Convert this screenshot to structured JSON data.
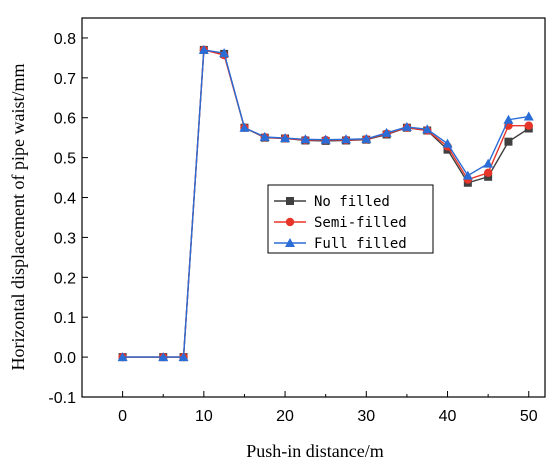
{
  "chart_data": {
    "type": "line",
    "title": "",
    "xlabel": "Push-in distance/m",
    "ylabel": "Horizontal displacement of pipe waist/mm",
    "xlim": [
      -5,
      52
    ],
    "ylim": [
      -0.1,
      0.85
    ],
    "xticks": [
      0,
      10,
      20,
      30,
      40,
      50
    ],
    "yticks": [
      -0.1,
      0.0,
      0.1,
      0.2,
      0.3,
      0.4,
      0.5,
      0.6,
      0.7,
      0.8
    ],
    "xtick_labels": [
      "0",
      "10",
      "20",
      "30",
      "40",
      "50"
    ],
    "ytick_labels": [
      "-0.1",
      "0.0",
      "0.1",
      "0.2",
      "0.3",
      "0.4",
      "0.5",
      "0.6",
      "0.7",
      "0.8"
    ],
    "grid": false,
    "legend_position": "center-right",
    "x": [
      0,
      5,
      7.5,
      10,
      12.5,
      15,
      17.5,
      20,
      22.5,
      25,
      27.5,
      30,
      32.5,
      35,
      37.5,
      40,
      42.5,
      45,
      47.5,
      50
    ],
    "series": [
      {
        "name": "No filled",
        "color": "#404040",
        "marker": "square",
        "values": [
          0.0,
          0.0,
          0.0,
          0.77,
          0.76,
          0.575,
          0.55,
          0.548,
          0.543,
          0.542,
          0.543,
          0.545,
          0.558,
          0.575,
          0.568,
          0.52,
          0.437,
          0.452,
          0.54,
          0.573
        ]
      },
      {
        "name": "Semi-filled",
        "color": "#e8352a",
        "marker": "circle",
        "values": [
          0.0,
          0.0,
          0.0,
          0.77,
          0.757,
          0.575,
          0.551,
          0.548,
          0.544,
          0.544,
          0.544,
          0.546,
          0.56,
          0.575,
          0.568,
          0.528,
          0.445,
          0.462,
          0.58,
          0.58
        ]
      },
      {
        "name": "Full filled",
        "color": "#2a6dd6",
        "marker": "triangle",
        "values": [
          0.0,
          0.0,
          0.0,
          0.77,
          0.762,
          0.575,
          0.552,
          0.549,
          0.546,
          0.545,
          0.546,
          0.547,
          0.562,
          0.577,
          0.571,
          0.535,
          0.455,
          0.485,
          0.595,
          0.603
        ]
      }
    ]
  }
}
